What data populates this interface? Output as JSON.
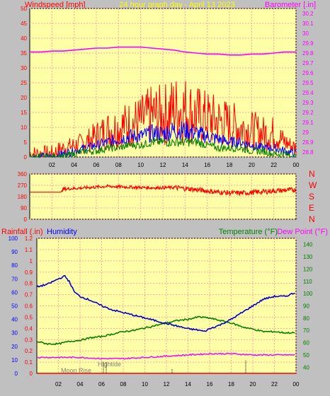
{
  "header": {
    "left_label": "Windspeed [mph]",
    "title": "24 hour graph day - April 13 2023",
    "right_label": "Barometer [.in]"
  },
  "lower_header": {
    "rain_label": "Rainfall (.in)",
    "humidity_label": "Humidity",
    "temp_label": "Temperature (°F)",
    "dew_label": "Dew Point (°F)"
  },
  "annotations": {
    "high_tide": "Hightide",
    "moon_rise": "Moon Rise"
  },
  "colors": {
    "plot_bg": "#ffffa8",
    "frame_bg": "#c0c0c0",
    "grid": "#ffa0a0",
    "wind": "#ff0000",
    "gust": "#0000ff",
    "avg": "#008000",
    "baro": "#ff00ff",
    "direction": "#ff0000",
    "humidity": "#0000c8",
    "temperature": "#008000",
    "dewpoint": "#ff00ff",
    "rain_axis": "#ff0000",
    "humidity_axis": "#0000ff"
  },
  "chart_data": [
    {
      "type": "line",
      "name": "wind-barometer",
      "x_ticks": [
        "02",
        "04",
        "06",
        "08",
        "10",
        "12",
        "14",
        "16",
        "18",
        "20",
        "22",
        "00"
      ],
      "xlim": [
        0,
        24
      ],
      "y_left": {
        "ticks": [
          "0",
          "5",
          "10",
          "15",
          "20",
          "25",
          "30",
          "35",
          "40",
          "45",
          "50"
        ],
        "ylim": [
          0,
          50
        ]
      },
      "y_right": {
        "ticks": [
          "28.8",
          "28.9",
          "29",
          "29.1",
          "29.2",
          "29.3",
          "29.4",
          "29.5",
          "29.6",
          "29.7",
          "29.8",
          "29.9",
          "30",
          "30.1",
          "30.2"
        ],
        "ylim": [
          28.75,
          30.25
        ]
      },
      "barometer": {
        "x": [
          0,
          1,
          2,
          3,
          4,
          5,
          6,
          7,
          8,
          9,
          10,
          11,
          12,
          13,
          14,
          15,
          16,
          17,
          18,
          19,
          20,
          21,
          22,
          23,
          24
        ],
        "y": [
          29.81,
          29.81,
          29.82,
          29.82,
          29.83,
          29.84,
          29.85,
          29.85,
          29.86,
          29.86,
          29.86,
          29.85,
          29.84,
          29.83,
          29.81,
          29.8,
          29.79,
          29.79,
          29.78,
          29.78,
          29.79,
          29.79,
          29.8,
          29.81,
          29.81
        ]
      },
      "wind_gust_envelope": {
        "x": [
          0,
          2,
          3,
          4,
          5,
          6,
          7,
          8,
          9,
          10,
          11,
          12,
          13,
          14,
          15,
          16,
          17,
          18,
          19,
          20,
          21,
          22,
          23,
          24
        ],
        "y": [
          1,
          1,
          3,
          4,
          5,
          7,
          9,
          10,
          11,
          12,
          14,
          14,
          16,
          16,
          14,
          13,
          12,
          11,
          10,
          9,
          8,
          8,
          5,
          3
        ]
      },
      "wind_mean_envelope": {
        "x": [
          0,
          2,
          3,
          4,
          5,
          6,
          7,
          8,
          9,
          10,
          11,
          12,
          13,
          14,
          15,
          16,
          17,
          18,
          19,
          20,
          21,
          22,
          23,
          24
        ],
        "y": [
          0,
          0,
          1,
          2,
          3,
          4,
          5,
          6,
          7,
          7,
          8,
          8,
          9,
          9,
          8,
          7,
          6,
          5,
          5,
          4,
          3,
          3,
          2,
          1
        ]
      },
      "wind_avg_envelope": {
        "x": [
          0,
          2,
          3,
          4,
          5,
          6,
          7,
          8,
          9,
          10,
          11,
          12,
          13,
          14,
          15,
          16,
          17,
          18,
          19,
          20,
          21,
          22,
          23,
          24
        ],
        "y": [
          0,
          0,
          0,
          1,
          2,
          2,
          3,
          3,
          4,
          4,
          5,
          5,
          5,
          5,
          5,
          4,
          3,
          3,
          3,
          2,
          2,
          1,
          1,
          0
        ]
      }
    },
    {
      "type": "line",
      "name": "wind-direction",
      "x_ticks": [
        "02",
        "04",
        "06",
        "08",
        "10",
        "12",
        "14",
        "16",
        "18",
        "20",
        "22",
        "00"
      ],
      "xlim": [
        0,
        24
      ],
      "y_ticks": [
        "0",
        "90",
        "180",
        "270",
        "360"
      ],
      "ylim": [
        0,
        360
      ],
      "compass_labels": [
        "N",
        "W",
        "S",
        "E",
        "N"
      ],
      "direction": {
        "x": [
          0,
          2.8,
          3,
          5,
          7,
          9,
          11,
          13,
          14,
          15,
          16,
          17,
          18,
          19,
          20,
          21,
          22,
          23,
          24
        ],
        "y": [
          215,
          215,
          240,
          250,
          262,
          255,
          250,
          252,
          245,
          235,
          225,
          215,
          210,
          208,
          212,
          218,
          225,
          230,
          235
        ]
      }
    },
    {
      "type": "line",
      "name": "temperature-humidity",
      "x_ticks": [
        "02",
        "04",
        "06",
        "08",
        "10",
        "12",
        "14",
        "16",
        "18",
        "20",
        "22",
        "00"
      ],
      "xlim": [
        0,
        24
      ],
      "y_left_humidity": {
        "ticks": [
          "0",
          "10",
          "20",
          "30",
          "40",
          "50",
          "60",
          "70",
          "80",
          "90",
          "100"
        ],
        "ylim": [
          0,
          100
        ]
      },
      "y_left_rain": {
        "ticks": [
          "0",
          "0.1",
          "0.2",
          "0.3",
          "0.4",
          "0.5",
          "0.6",
          "0.7",
          "0.8",
          "0.9",
          "1",
          "1.1",
          "1.2"
        ],
        "ylim": [
          0,
          1.2
        ]
      },
      "y_right_temp": {
        "ticks": [
          "40",
          "50",
          "60",
          "70",
          "80",
          "90",
          "100",
          "110",
          "120",
          "130",
          "140"
        ],
        "ylim": [
          35,
          145
        ]
      },
      "humidity": {
        "x": [
          0,
          1,
          2,
          2.6,
          3,
          3.5,
          4,
          5,
          6,
          7,
          8,
          9,
          10,
          11,
          12,
          13,
          14,
          15,
          15.5,
          16,
          17,
          18,
          19,
          20,
          21,
          22,
          23,
          24
        ],
        "y": [
          64,
          66,
          70,
          72,
          68,
          60,
          57,
          54,
          50,
          47,
          45,
          43,
          41,
          39,
          37,
          35,
          33,
          32,
          31,
          33,
          36,
          40,
          45,
          50,
          55,
          57,
          57,
          60
        ]
      },
      "temperature": {
        "x": [
          0,
          1,
          2,
          3,
          4,
          5,
          6,
          7,
          8,
          9,
          10,
          11,
          12,
          13,
          14,
          15,
          16,
          17,
          18,
          19,
          20,
          21,
          22,
          23,
          24
        ],
        "y": [
          61,
          59,
          59,
          61,
          62,
          64,
          65,
          67,
          69,
          70,
          72,
          74,
          76,
          78,
          79,
          81,
          80,
          78,
          76,
          73,
          71,
          69,
          69,
          68,
          68
        ]
      },
      "dewpoint": {
        "x": [
          0,
          2,
          4,
          6,
          8,
          10,
          12,
          14,
          16,
          18,
          20,
          22,
          24
        ],
        "y": [
          48,
          48,
          48,
          47,
          47,
          48,
          49,
          50,
          51,
          51,
          50,
          50,
          50
        ]
      },
      "rainfall": {
        "x": [
          0,
          24
        ],
        "y": [
          0,
          0
        ]
      }
    }
  ]
}
